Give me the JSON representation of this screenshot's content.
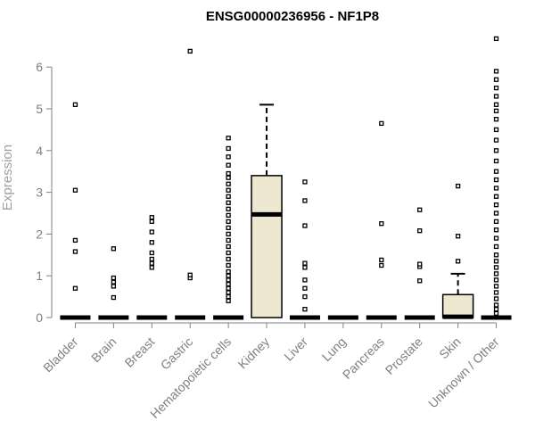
{
  "chart_data": {
    "type": "boxplot",
    "title": "ENSG00000236956 - NF1P8",
    "ylabel": "Expression",
    "xlabel": "",
    "ylim": [
      0,
      6.8
    ],
    "yticks": [
      0,
      1,
      2,
      3,
      4,
      5,
      6
    ],
    "box_fill": "#ede8cf",
    "categories": [
      "Bladder",
      "Brain",
      "Breast",
      "Gastric",
      "Hematopoietic cells",
      "Kidney",
      "Liver",
      "Lung",
      "Pancreas",
      "Prostate",
      "Skin",
      "Unknown / Other"
    ],
    "boxes": [
      {
        "category": "Bladder",
        "q1": 0,
        "median": 0,
        "q3": 0,
        "whisker_low": 0,
        "whisker_high": 0,
        "outliers": [
          0.7,
          1.58,
          1.85,
          3.05,
          5.1
        ]
      },
      {
        "category": "Brain",
        "q1": 0,
        "median": 0,
        "q3": 0,
        "whisker_low": 0,
        "whisker_high": 0,
        "outliers": [
          0.48,
          0.75,
          0.85,
          0.95,
          1.65
        ]
      },
      {
        "category": "Breast",
        "q1": 0,
        "median": 0,
        "q3": 0,
        "whisker_low": 0,
        "whisker_high": 0,
        "outliers": [
          1.2,
          1.3,
          1.4,
          1.55,
          1.8,
          2.05,
          2.3,
          2.4
        ]
      },
      {
        "category": "Gastric",
        "q1": 0,
        "median": 0,
        "q3": 0,
        "whisker_low": 0,
        "whisker_high": 0,
        "outliers": [
          0.95,
          1.02,
          6.38
        ]
      },
      {
        "category": "Hematopoietic cells",
        "q1": 0,
        "median": 0,
        "q3": 0,
        "whisker_low": 0,
        "whisker_high": 0,
        "outliers": [
          0.4,
          0.5,
          0.6,
          0.7,
          0.8,
          0.9,
          1.0,
          1.1,
          1.25,
          1.4,
          1.55,
          1.7,
          1.85,
          2.0,
          2.15,
          2.3,
          2.45,
          2.6,
          2.75,
          2.9,
          3.05,
          3.2,
          3.35,
          3.45,
          3.65,
          3.85,
          4.05,
          4.3
        ]
      },
      {
        "category": "Kidney",
        "q1": 0,
        "median": 2.47,
        "q3": 3.4,
        "whisker_low": 0,
        "whisker_high": 5.1,
        "outliers": []
      },
      {
        "category": "Liver",
        "q1": 0,
        "median": 0,
        "q3": 0,
        "whisker_low": 0,
        "whisker_high": 0,
        "outliers": [
          0.2,
          0.5,
          0.7,
          0.9,
          1.2,
          1.3,
          2.2,
          2.8,
          3.25
        ]
      },
      {
        "category": "Lung",
        "q1": 0,
        "median": 0,
        "q3": 0,
        "whisker_low": 0,
        "whisker_high": 0,
        "outliers": []
      },
      {
        "category": "Pancreas",
        "q1": 0,
        "median": 0,
        "q3": 0,
        "whisker_low": 0,
        "whisker_high": 0,
        "outliers": [
          1.25,
          1.38,
          2.25,
          4.65
        ]
      },
      {
        "category": "Prostate",
        "q1": 0,
        "median": 0,
        "q3": 0,
        "whisker_low": 0,
        "whisker_high": 0,
        "outliers": [
          0.88,
          1.22,
          1.28,
          2.08,
          2.58
        ]
      },
      {
        "category": "Skin",
        "q1": 0,
        "median": 0.02,
        "q3": 0.55,
        "whisker_low": 0,
        "whisker_high": 1.05,
        "outliers": [
          1.35,
          1.95,
          3.15
        ]
      },
      {
        "category": "Unknown / Other",
        "q1": 0,
        "median": 0,
        "q3": 0,
        "whisker_low": 0,
        "whisker_high": 0,
        "outliers": [
          0.1,
          0.2,
          0.3,
          0.45,
          0.6,
          0.75,
          0.9,
          1.05,
          1.2,
          1.35,
          1.5,
          1.7,
          1.9,
          2.1,
          2.3,
          2.5,
          2.7,
          2.9,
          3.1,
          3.3,
          3.5,
          3.75,
          4.0,
          4.25,
          4.5,
          4.75,
          4.95,
          5.1,
          5.3,
          5.5,
          5.7,
          5.9,
          6.68
        ]
      }
    ]
  }
}
